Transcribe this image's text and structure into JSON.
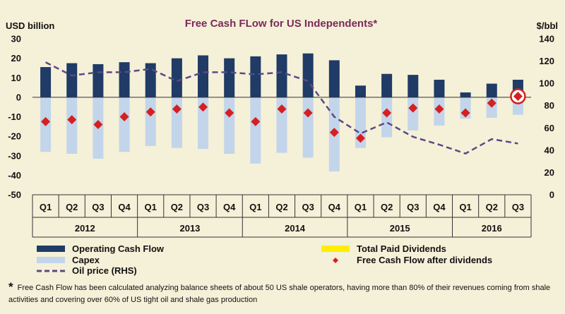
{
  "chart_data": {
    "type": "bar",
    "title": "Free Cash FLow for US Independents*",
    "y_left_label": "USD billion",
    "y_right_label": "$/bbl",
    "y_left_lim": [
      -50,
      30
    ],
    "y_right_lim": [
      0,
      140
    ],
    "y_left_ticks": [
      "30",
      "20",
      "10",
      "0",
      "-10",
      "-20",
      "-30",
      "-40",
      "-50"
    ],
    "y_right_ticks": [
      "140",
      "120",
      "100",
      "80",
      "60",
      "40",
      "20",
      "0"
    ],
    "categories": [
      "Q1",
      "Q2",
      "Q3",
      "Q4",
      "Q1",
      "Q2",
      "Q3",
      "Q4",
      "Q1",
      "Q2",
      "Q3",
      "Q4",
      "Q1",
      "Q2",
      "Q3",
      "Q4",
      "Q1",
      "Q2",
      "Q3"
    ],
    "years": [
      {
        "label": "2012",
        "start": 0,
        "count": 4
      },
      {
        "label": "2013",
        "start": 4,
        "count": 4
      },
      {
        "label": "2014",
        "start": 8,
        "count": 4
      },
      {
        "label": "2015",
        "start": 12,
        "count": 4
      },
      {
        "label": "2016",
        "start": 16,
        "count": 3
      }
    ],
    "series": [
      {
        "name": "Operating Cash Flow",
        "axis": "left",
        "kind": "bar",
        "values": [
          15.5,
          17.5,
          17,
          18,
          17.5,
          20,
          21.5,
          20,
          21,
          22,
          22.5,
          19,
          6,
          12,
          11.5,
          9,
          2.5,
          7,
          9
        ]
      },
      {
        "name": "Capex",
        "axis": "left",
        "kind": "bar",
        "values": [
          -28,
          -29,
          -31.5,
          -28,
          -25,
          -26,
          -26.5,
          -29,
          -34,
          -28.5,
          -31,
          -38,
          -26,
          -20.5,
          -17,
          -14.5,
          -11,
          -10.5,
          -9
        ]
      },
      {
        "name": "Total Paid Dividends",
        "axis": "left",
        "kind": "bar",
        "values": [
          0,
          0,
          0,
          0,
          0,
          0,
          0,
          0,
          0,
          0,
          0,
          0,
          0,
          0,
          0,
          0,
          0,
          0,
          0
        ]
      },
      {
        "name": "Free Cash Flow after dividends",
        "axis": "left",
        "kind": "marker",
        "values": [
          -12.5,
          -11.5,
          -14,
          -10,
          -7.5,
          -6,
          -5,
          -8,
          -12.5,
          -6,
          -8,
          -18,
          -21,
          -8,
          -5.5,
          -6,
          -8,
          -3,
          0.5
        ]
      },
      {
        "name": "Oil price (RHS)",
        "axis": "right",
        "kind": "line",
        "values": [
          119,
          107,
          110,
          110,
          113,
          102,
          110,
          110,
          108,
          110,
          102,
          70,
          55,
          65,
          52,
          45,
          37,
          50,
          46
        ]
      }
    ],
    "colors": {
      "operating": "#1f3b66",
      "capex": "#c3d5ea",
      "dividends": "#ffee00",
      "fcf": "#d42020",
      "oil": "#5a4a85",
      "title": "#7a2a5a"
    }
  },
  "legend": {
    "operating": "Operating Cash Flow",
    "capex": "Capex",
    "oil": "Oil price (RHS)",
    "dividends": "Total Paid Dividends",
    "fcf": "Free Cash Flow after dividends"
  },
  "footnote": {
    "star": "*",
    "text": "Free Cash Flow has been calculated analyzing balance sheets of about 50 US shale operators, having more than 80% of their revenues coming from shale activities and covering over 60% of US tight oil and shale gas production"
  }
}
